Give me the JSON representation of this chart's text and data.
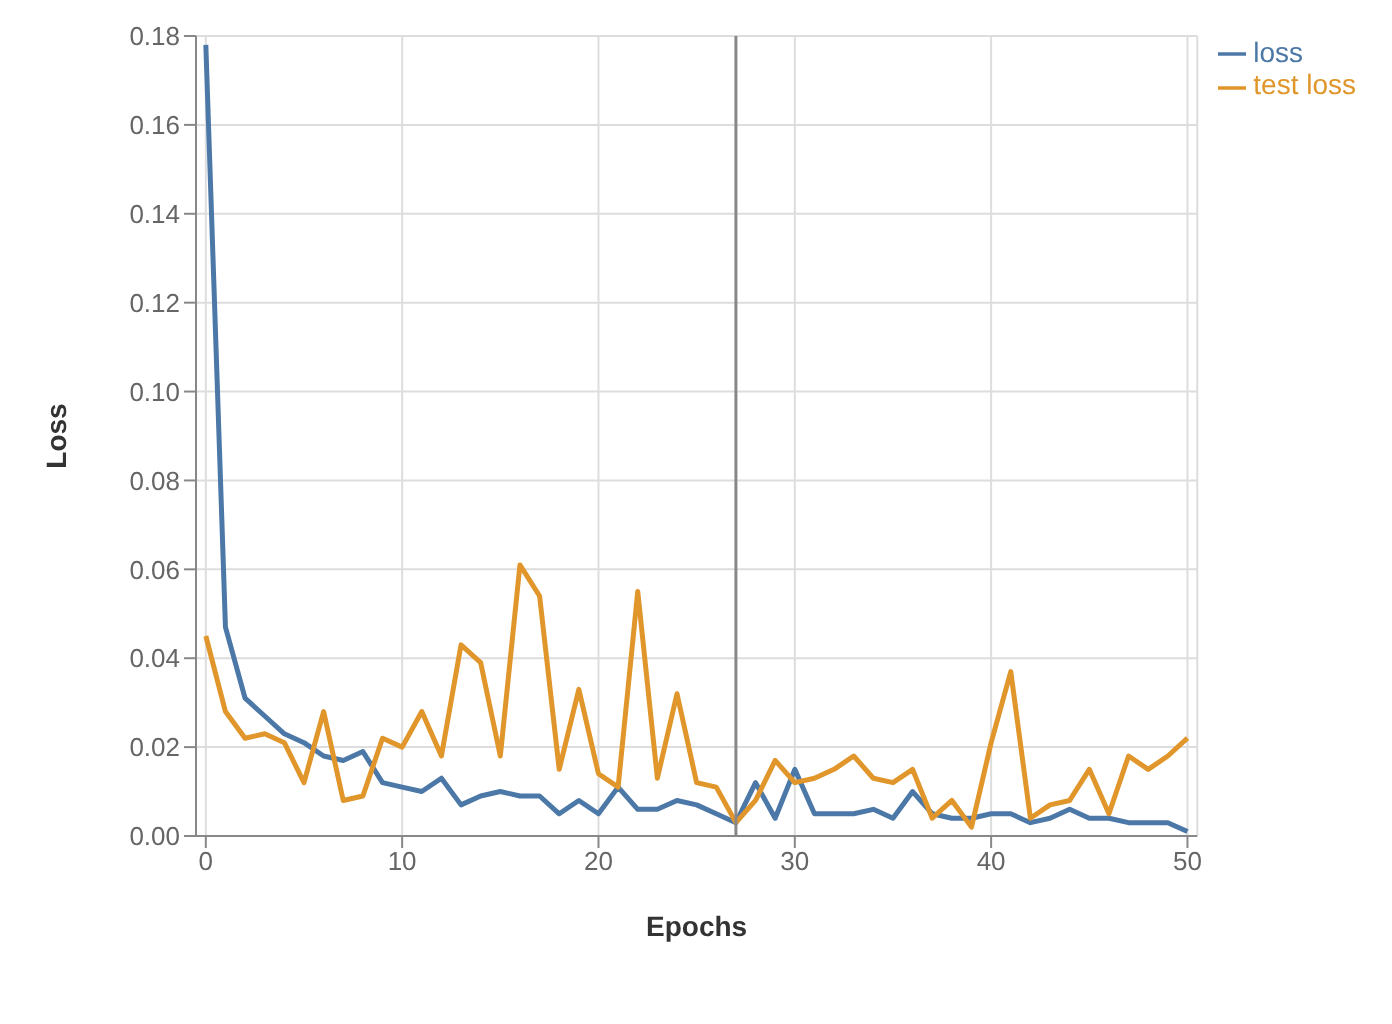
{
  "chart_data": {
    "type": "line",
    "xlabel": "Epochs",
    "ylabel": "Loss",
    "x": [
      0,
      1,
      2,
      3,
      4,
      5,
      6,
      7,
      8,
      9,
      10,
      11,
      12,
      13,
      14,
      15,
      16,
      17,
      18,
      19,
      20,
      21,
      22,
      23,
      24,
      25,
      26,
      27,
      28,
      29,
      30,
      31,
      32,
      33,
      34,
      35,
      36,
      37,
      38,
      39,
      40,
      41,
      42,
      43,
      44,
      45,
      46,
      47,
      48,
      49,
      50
    ],
    "series": [
      {
        "name": "loss",
        "color": "#4c78a8",
        "values": [
          0.178,
          0.047,
          0.031,
          0.027,
          0.023,
          0.021,
          0.018,
          0.017,
          0.019,
          0.012,
          0.011,
          0.01,
          0.013,
          0.007,
          0.009,
          0.01,
          0.009,
          0.009,
          0.005,
          0.008,
          0.005,
          0.011,
          0.006,
          0.006,
          0.008,
          0.007,
          0.005,
          0.003,
          0.012,
          0.004,
          0.015,
          0.005,
          0.005,
          0.005,
          0.006,
          0.004,
          0.01,
          0.005,
          0.004,
          0.004,
          0.005,
          0.005,
          0.003,
          0.004,
          0.006,
          0.004,
          0.004,
          0.003,
          0.003,
          0.003,
          0.001
        ]
      },
      {
        "name": "test loss",
        "color": "#e0962a",
        "values": [
          0.045,
          0.028,
          0.022,
          0.023,
          0.021,
          0.012,
          0.028,
          0.008,
          0.009,
          0.022,
          0.02,
          0.028,
          0.018,
          0.043,
          0.039,
          0.018,
          0.061,
          0.054,
          0.015,
          0.033,
          0.014,
          0.011,
          0.055,
          0.013,
          0.032,
          0.012,
          0.011,
          0.003,
          0.008,
          0.017,
          0.012,
          0.013,
          0.015,
          0.018,
          0.013,
          0.012,
          0.015,
          0.004,
          0.008,
          0.002,
          0.021,
          0.037,
          0.004,
          0.007,
          0.008,
          0.015,
          0.005,
          0.018,
          0.015,
          0.018,
          0.022
        ]
      }
    ],
    "xlim": [
      -0.5,
      50.5
    ],
    "xticks": [
      0,
      10,
      20,
      30,
      40,
      50
    ],
    "ylim": [
      0,
      0.18
    ],
    "yticks": [
      {
        "value": 0,
        "label": "0.00"
      },
      0.02,
      0.04,
      0.06,
      0.08,
      {
        "value": 0.1,
        "label": "0.10"
      },
      0.12,
      0.14,
      0.16,
      0.18
    ],
    "ref_lines": [
      {
        "axis": "x",
        "value": 27,
        "color": "#888888"
      }
    ],
    "grid": true,
    "legend": "top right",
    "marker": "none",
    "line_style": "solid"
  }
}
